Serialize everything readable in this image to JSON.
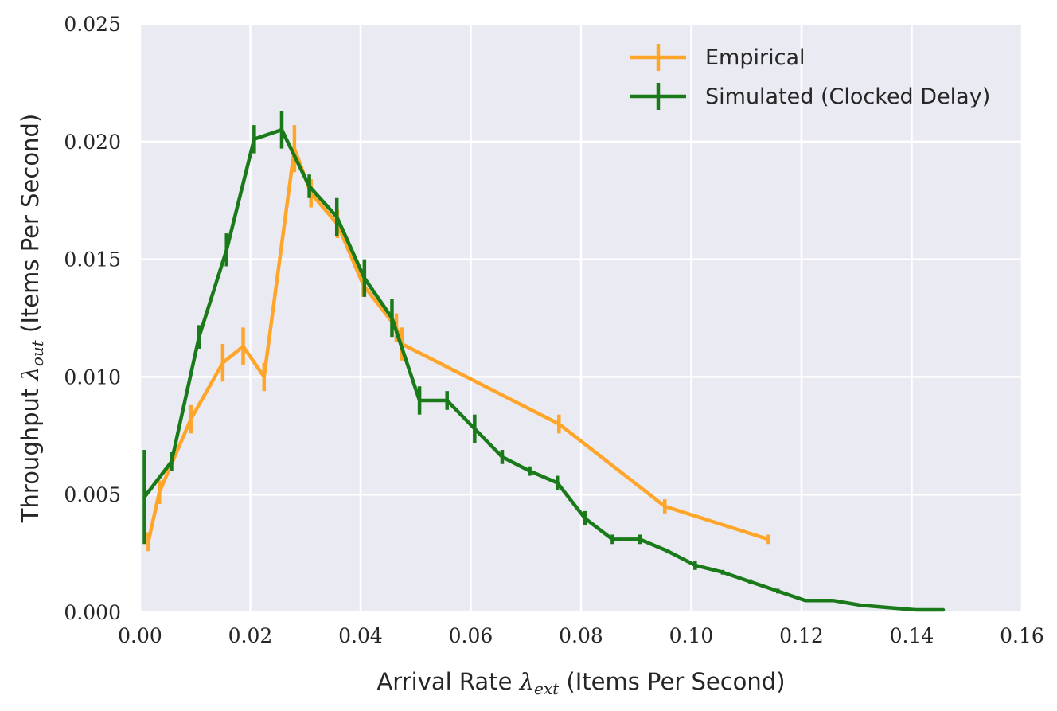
{
  "chart_data": {
    "type": "line",
    "title": "",
    "xlabel": {
      "prefix": "Arrival Rate ",
      "symbol": "λ",
      "subscript": "ext",
      "suffix": " (Items Per Second)"
    },
    "ylabel": {
      "prefix": "Throughput ",
      "symbol": "λ",
      "subscript": "out",
      "suffix": " (Items Per Second)"
    },
    "xlim": [
      0,
      0.16
    ],
    "ylim": [
      0,
      0.025
    ],
    "xticks": [
      0,
      0.02,
      0.04,
      0.06,
      0.08,
      0.1,
      0.12,
      0.14,
      0.16
    ],
    "xtick_labels": [
      "0.00",
      "0.02",
      "0.04",
      "0.06",
      "0.08",
      "0.10",
      "0.12",
      "0.14",
      "0.16"
    ],
    "yticks": [
      0,
      0.005,
      0.01,
      0.015,
      0.02,
      0.025
    ],
    "ytick_labels": [
      "0.000",
      "0.005",
      "0.010",
      "0.015",
      "0.020",
      "0.025"
    ],
    "grid": true,
    "legend_position": "top-right",
    "series": [
      {
        "name": "Empirical",
        "color": "#ffa52a",
        "x": [
          0.0015,
          0.0035,
          0.0092,
          0.015,
          0.0187,
          0.0225,
          0.028,
          0.031,
          0.0358,
          0.0405,
          0.0465,
          0.0475,
          0.076,
          0.0952,
          0.114
        ],
        "y": [
          0.003,
          0.0051,
          0.0082,
          0.0106,
          0.0113,
          0.01,
          0.0197,
          0.0178,
          0.0165,
          0.0139,
          0.0121,
          0.0114,
          0.008,
          0.0045,
          0.0031
        ],
        "yerr": [
          0.0004,
          0.0005,
          0.0006,
          0.0008,
          0.0008,
          0.0006,
          0.001,
          0.0006,
          0.0006,
          0.0005,
          0.0006,
          0.0007,
          0.0004,
          0.0003,
          0.0002
        ]
      },
      {
        "name": "Simulated (Clocked Delay)",
        "color": "#1a7a1a",
        "x": [
          0.0008,
          0.0057,
          0.0107,
          0.0157,
          0.0207,
          0.0257,
          0.0307,
          0.0357,
          0.0407,
          0.0457,
          0.0507,
          0.0557,
          0.0607,
          0.0657,
          0.0707,
          0.0757,
          0.0807,
          0.0857,
          0.0907,
          0.0957,
          0.1007,
          0.1057,
          0.1107,
          0.1157,
          0.1207,
          0.1257,
          0.1307,
          0.1357,
          0.1407,
          0.1457
        ],
        "y": [
          0.0049,
          0.0064,
          0.0117,
          0.0154,
          0.0201,
          0.0205,
          0.0181,
          0.0168,
          0.0142,
          0.0125,
          0.009,
          0.009,
          0.0078,
          0.0066,
          0.006,
          0.0055,
          0.004,
          0.0031,
          0.0031,
          0.0026,
          0.002,
          0.0017,
          0.0013,
          0.0009,
          0.0005,
          0.0005,
          0.0003,
          0.0002,
          0.0001,
          0.0001
        ],
        "yerr": [
          0.002,
          0.0004,
          0.0005,
          0.0007,
          0.0006,
          0.0008,
          0.0005,
          0.0008,
          0.0008,
          0.0008,
          0.0006,
          0.0004,
          0.0006,
          0.0003,
          0.0002,
          0.0003,
          0.0003,
          0.0002,
          0.0002,
          0.0001,
          0.0002,
          0.0001,
          0.0001,
          0.0001,
          0,
          0,
          0,
          0,
          0,
          0
        ]
      }
    ]
  }
}
